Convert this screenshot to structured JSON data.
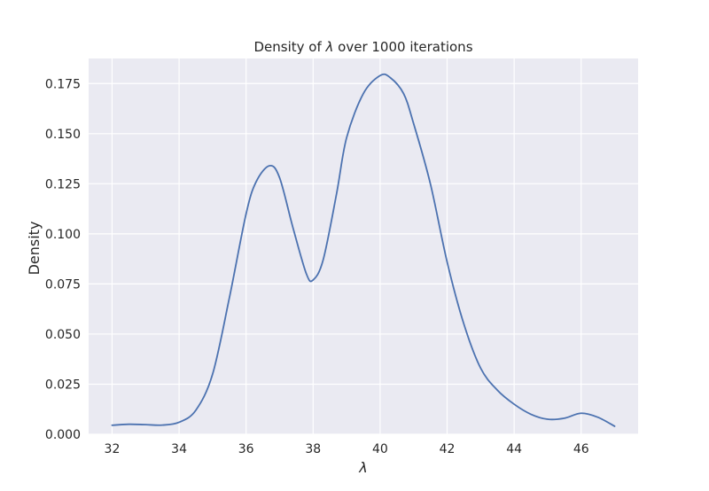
{
  "chart_data": {
    "type": "line",
    "title_prefix": "Density of ",
    "title_symbol": "λ",
    "title_suffix": " over 1000 iterations",
    "xlabel": "λ",
    "ylabel": "Density",
    "xlim": [
      31.3,
      47.7
    ],
    "ylim": [
      0.0,
      0.1875
    ],
    "xticks": [
      32,
      34,
      36,
      38,
      40,
      42,
      44,
      46
    ],
    "yticks": [
      0.0,
      0.025,
      0.05,
      0.075,
      0.1,
      0.125,
      0.15,
      0.175
    ],
    "ytick_labels": [
      "0.000",
      "0.025",
      "0.050",
      "0.075",
      "0.100",
      "0.125",
      "0.150",
      "0.175"
    ],
    "grid": true,
    "line_color": "#4c72b0",
    "background_color": "#eaeaf2",
    "series": [
      {
        "x": [
          32.0,
          32.5,
          33.0,
          33.5,
          34.0,
          34.5,
          35.0,
          35.5,
          36.0,
          36.3,
          36.7,
          37.0,
          37.4,
          37.8,
          38.0,
          38.3,
          38.7,
          39.0,
          39.5,
          40.0,
          40.3,
          40.7,
          41.0,
          41.5,
          42.0,
          42.5,
          43.0,
          43.5,
          44.0,
          44.5,
          45.0,
          45.5,
          46.0,
          46.5,
          47.0
        ],
        "y": [
          0.0045,
          0.005,
          0.0048,
          0.0046,
          0.006,
          0.012,
          0.03,
          0.068,
          0.11,
          0.126,
          0.134,
          0.128,
          0.103,
          0.08,
          0.077,
          0.087,
          0.12,
          0.148,
          0.17,
          0.179,
          0.178,
          0.17,
          0.155,
          0.125,
          0.086,
          0.055,
          0.033,
          0.022,
          0.015,
          0.01,
          0.0075,
          0.008,
          0.0105,
          0.0085,
          0.004
        ]
      }
    ]
  }
}
